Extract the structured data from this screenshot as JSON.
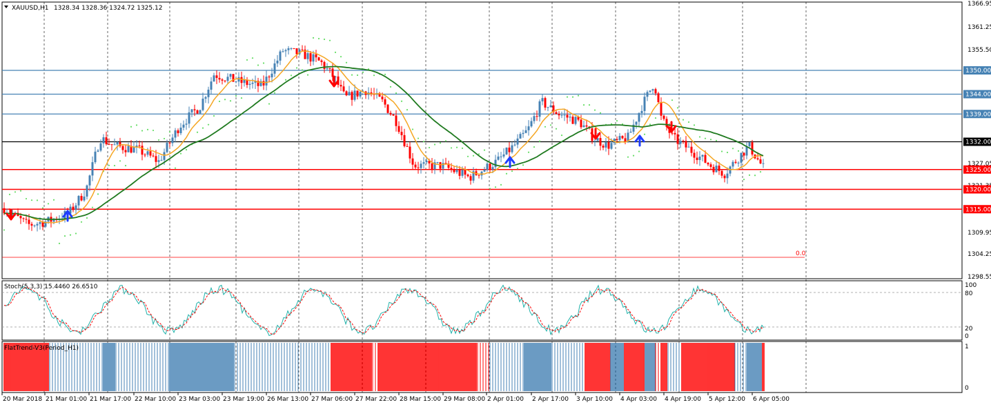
{
  "header": {
    "symbol": "XAUUSD,H1",
    "ohlc": "1328.34 1328.36 1324.72 1325.12"
  },
  "price_axis": {
    "ticks": [
      "1366.95",
      "1361.25",
      "1355.50",
      "1350.00",
      "1344.00",
      "1339.00",
      "1332.00",
      "1327.05",
      "1321.35",
      "1320.00",
      "1315.00",
      "1309.95",
      "1304.25",
      "1298.55"
    ]
  },
  "levels": [
    {
      "price": 1350.0,
      "label": "1350.00",
      "color": "#4682b4"
    },
    {
      "price": 1344.0,
      "label": "1344.00",
      "color": "#4682b4"
    },
    {
      "price": 1339.0,
      "label": "1339.00",
      "color": "#4682b4"
    },
    {
      "price": 1332.0,
      "label": "1332.00",
      "color": "#000000"
    },
    {
      "price": 1325.0,
      "label": "1325.00",
      "color": "#ff0000"
    },
    {
      "price": 1320.0,
      "label": "1320.00",
      "color": "#ff0000"
    },
    {
      "price": 1315.0,
      "label": "1315.00",
      "color": "#ff0000"
    }
  ],
  "fibo_label": "0.0",
  "stoch": {
    "title": "Stoch(5,3,3) 15.4460 26.6510",
    "ticks": [
      "100",
      "80",
      "20",
      "0"
    ]
  },
  "flat": {
    "title": "FlatTrend-V3(Period_H1)",
    "ticks": [
      "1",
      "0"
    ]
  },
  "time_axis": {
    "labels": [
      "20 Mar 2018",
      "21 Mar 01:00",
      "21 Mar 17:00",
      "22 Mar 10:00",
      "23 Mar 03:00",
      "23 Mar 19:00",
      "26 Mar 13:00",
      "27 Mar 06:00",
      "27 Mar 22:00",
      "28 Mar 15:00",
      "29 Mar 08:00",
      "2 Apr 01:00",
      "2 Apr 17:00",
      "3 Apr 10:00",
      "4 Apr 03:00",
      "4 Apr 19:00",
      "5 Apr 12:00",
      "6 Apr 05:00"
    ]
  },
  "colors": {
    "bull": "#4682b4",
    "bear": "#ff0000",
    "ma_fast": "#f5a623",
    "ma_slow": "#1f7a1f",
    "sar": "#66dd66",
    "stoch_main": "#20b2aa",
    "stoch_signal": "#ff0000"
  },
  "chart_data": {
    "type": "candlestick",
    "symbol": "XAUUSD",
    "timeframe": "H1",
    "price_range": [
      1298.55,
      1366.95
    ],
    "close_path": [
      [
        0,
        1316
      ],
      [
        40,
        1311
      ],
      [
        70,
        1312
      ],
      [
        100,
        1314
      ],
      [
        125,
        1320
      ],
      [
        145,
        1333
      ],
      [
        165,
        1331
      ],
      [
        200,
        1330
      ],
      [
        230,
        1327
      ],
      [
        260,
        1336
      ],
      [
        290,
        1341
      ],
      [
        310,
        1349
      ],
      [
        350,
        1347
      ],
      [
        380,
        1346
      ],
      [
        410,
        1355
      ],
      [
        440,
        1354
      ],
      [
        465,
        1352
      ],
      [
        485,
        1348
      ],
      [
        500,
        1343
      ],
      [
        530,
        1345
      ],
      [
        555,
        1342
      ],
      [
        575,
        1337
      ],
      [
        600,
        1326
      ],
      [
        640,
        1326
      ],
      [
        680,
        1323
      ],
      [
        700,
        1325
      ],
      [
        720,
        1327
      ],
      [
        745,
        1331
      ],
      [
        765,
        1335
      ],
      [
        785,
        1342
      ],
      [
        810,
        1339
      ],
      [
        840,
        1337
      ],
      [
        860,
        1333
      ],
      [
        880,
        1331
      ],
      [
        910,
        1333
      ],
      [
        930,
        1341
      ],
      [
        948,
        1347
      ],
      [
        958,
        1338
      ],
      [
        975,
        1333
      ],
      [
        1000,
        1330
      ],
      [
        1030,
        1326
      ],
      [
        1050,
        1324
      ],
      [
        1065,
        1327
      ],
      [
        1085,
        1331
      ],
      [
        1100,
        1327
      ],
      [
        1108,
        1325
      ]
    ]
  }
}
